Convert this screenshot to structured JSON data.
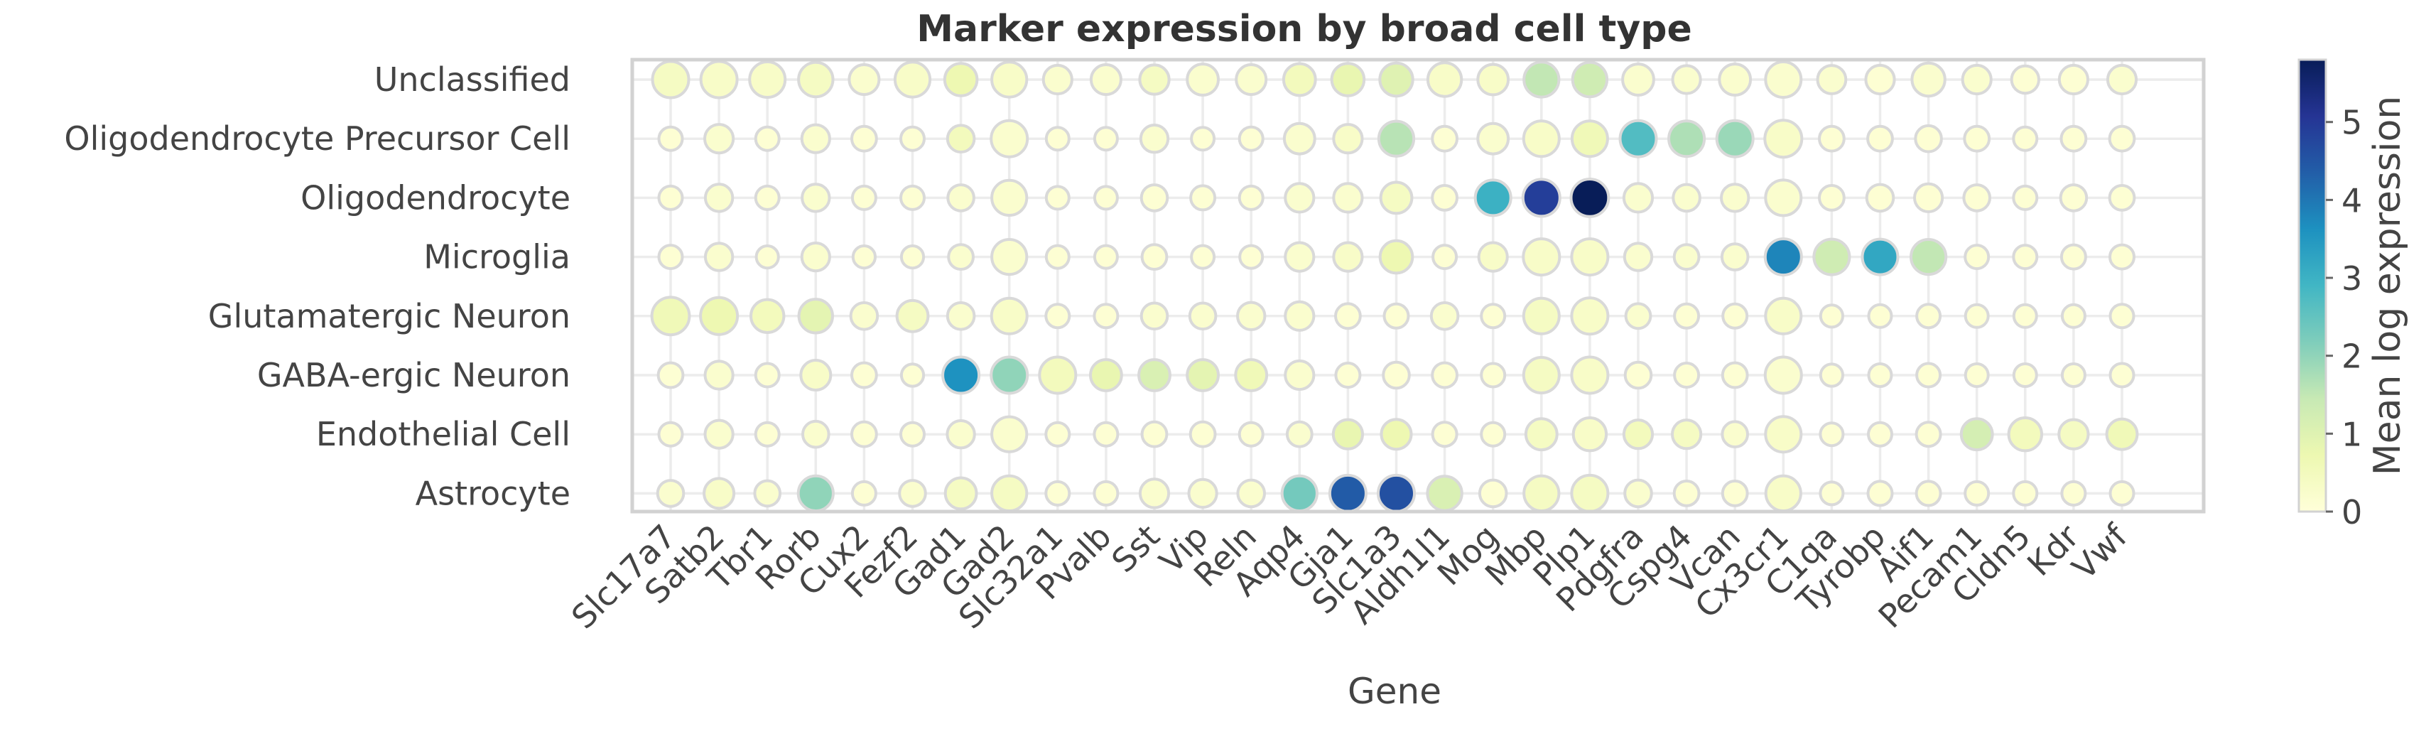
{
  "chart_data": {
    "type": "dotplot",
    "title": "Marker expression by broad cell type",
    "xlabel": "Gene",
    "ylabel": "",
    "genes": [
      "Slc17a7",
      "Satb2",
      "Tbr1",
      "Rorb",
      "Cux2",
      "Fezf2",
      "Gad1",
      "Gad2",
      "Slc32a1",
      "Pvalb",
      "Sst",
      "Vip",
      "Reln",
      "Aqp4",
      "Gja1",
      "Slc1a3",
      "Aldh1l1",
      "Mog",
      "Mbp",
      "Plp1",
      "Pdgfra",
      "Cspg4",
      "Vcan",
      "Cx3cr1",
      "C1qa",
      "Tyrobp",
      "Aif1",
      "Pecam1",
      "Cldn5",
      "Kdr",
      "Vwf"
    ],
    "cell_types": [
      "Unclassified",
      "Oligodendrocyte Precursor Cell",
      "Oligodendrocyte",
      "Microglia",
      "Glutamatergic Neuron",
      "GABA-ergic Neuron",
      "Endothelial Cell",
      "Astrocyte"
    ],
    "colorbar": {
      "label": "Mean log expression",
      "min": 0,
      "max": 5.8,
      "ticks": [
        0,
        1,
        2,
        3,
        4,
        5
      ],
      "colormap": "YlGnBu"
    },
    "rows": [
      {
        "cell_type": "Unclassified",
        "expr": [
          0.4,
          0.3,
          0.3,
          0.4,
          0.2,
          0.3,
          0.7,
          0.3,
          0.2,
          0.2,
          0.4,
          0.2,
          0.2,
          0.5,
          0.8,
          1.0,
          0.3,
          0.3,
          1.5,
          1.3,
          0.2,
          0.2,
          0.2,
          0.2,
          0.2,
          0.1,
          0.2,
          0.2,
          0.1,
          0.1,
          0.2
        ],
        "frac": [
          0.75,
          0.75,
          0.72,
          0.68,
          0.5,
          0.7,
          0.6,
          0.7,
          0.45,
          0.5,
          0.48,
          0.55,
          0.5,
          0.58,
          0.6,
          0.62,
          0.65,
          0.52,
          0.7,
          0.68,
          0.55,
          0.42,
          0.55,
          0.72,
          0.44,
          0.45,
          0.62,
          0.45,
          0.4,
          0.45,
          0.45
        ]
      },
      {
        "cell_type": "Oligodendrocyte Precursor Cell",
        "expr": [
          0.1,
          0.2,
          0.1,
          0.2,
          0.1,
          0.1,
          0.5,
          0.2,
          0.1,
          0.1,
          0.2,
          0.1,
          0.1,
          0.2,
          0.3,
          1.6,
          0.1,
          0.2,
          0.3,
          0.6,
          2.7,
          1.7,
          1.9,
          0.3,
          0.1,
          0.1,
          0.1,
          0.1,
          0.1,
          0.1,
          0.1
        ],
        "frac": [
          0.25,
          0.45,
          0.25,
          0.42,
          0.3,
          0.25,
          0.38,
          0.75,
          0.22,
          0.22,
          0.4,
          0.22,
          0.25,
          0.52,
          0.45,
          0.7,
          0.3,
          0.52,
          0.72,
          0.72,
          0.75,
          0.72,
          0.75,
          0.78,
          0.3,
          0.3,
          0.35,
          0.3,
          0.25,
          0.3,
          0.3
        ]
      },
      {
        "cell_type": "Oligodendrocyte",
        "expr": [
          0.1,
          0.2,
          0.1,
          0.2,
          0.1,
          0.1,
          0.2,
          0.2,
          0.1,
          0.1,
          0.1,
          0.1,
          0.1,
          0.2,
          0.2,
          0.4,
          0.1,
          3.0,
          4.9,
          5.8,
          0.2,
          0.2,
          0.2,
          0.2,
          0.1,
          0.1,
          0.1,
          0.1,
          0.1,
          0.1,
          0.1
        ],
        "frac": [
          0.25,
          0.4,
          0.25,
          0.4,
          0.25,
          0.25,
          0.35,
          0.7,
          0.22,
          0.22,
          0.35,
          0.28,
          0.25,
          0.45,
          0.45,
          0.55,
          0.3,
          0.72,
          0.78,
          0.8,
          0.45,
          0.38,
          0.4,
          0.72,
          0.3,
          0.38,
          0.42,
          0.35,
          0.25,
          0.35,
          0.3
        ]
      },
      {
        "cell_type": "Microglia",
        "expr": [
          0.1,
          0.2,
          0.1,
          0.2,
          0.1,
          0.1,
          0.2,
          0.2,
          0.1,
          0.1,
          0.1,
          0.1,
          0.1,
          0.2,
          0.3,
          0.7,
          0.1,
          0.3,
          0.3,
          0.3,
          0.2,
          0.2,
          0.2,
          3.8,
          1.3,
          3.2,
          1.5,
          0.1,
          0.1,
          0.1,
          0.1
        ],
        "frac": [
          0.25,
          0.4,
          0.2,
          0.42,
          0.2,
          0.2,
          0.3,
          0.7,
          0.22,
          0.22,
          0.3,
          0.22,
          0.22,
          0.45,
          0.45,
          0.6,
          0.25,
          0.45,
          0.75,
          0.75,
          0.4,
          0.3,
          0.35,
          0.75,
          0.72,
          0.72,
          0.7,
          0.25,
          0.25,
          0.28,
          0.28
        ]
      },
      {
        "cell_type": "Glutamatergic Neuron",
        "expr": [
          0.6,
          0.7,
          0.5,
          0.9,
          0.2,
          0.4,
          0.2,
          0.3,
          0.1,
          0.1,
          0.2,
          0.2,
          0.2,
          0.2,
          0.1,
          0.1,
          0.2,
          0.1,
          0.4,
          0.3,
          0.2,
          0.1,
          0.1,
          0.3,
          0.1,
          0.1,
          0.1,
          0.1,
          0.1,
          0.1,
          0.1
        ],
        "frac": [
          0.8,
          0.78,
          0.62,
          0.65,
          0.38,
          0.55,
          0.38,
          0.72,
          0.25,
          0.25,
          0.35,
          0.35,
          0.4,
          0.45,
          0.3,
          0.28,
          0.38,
          0.25,
          0.72,
          0.75,
          0.3,
          0.28,
          0.28,
          0.72,
          0.2,
          0.22,
          0.25,
          0.22,
          0.22,
          0.22,
          0.25
        ]
      },
      {
        "cell_type": "GABA-ergic Neuron",
        "expr": [
          0.1,
          0.2,
          0.1,
          0.3,
          0.1,
          0.1,
          3.6,
          2.0,
          0.5,
          0.8,
          1.1,
          0.9,
          0.6,
          0.2,
          0.1,
          0.1,
          0.1,
          0.1,
          0.4,
          0.3,
          0.1,
          0.1,
          0.1,
          0.2,
          0.1,
          0.1,
          0.1,
          0.1,
          0.1,
          0.1,
          0.1
        ],
        "frac": [
          0.3,
          0.42,
          0.25,
          0.5,
          0.3,
          0.2,
          0.75,
          0.75,
          0.75,
          0.55,
          0.55,
          0.55,
          0.55,
          0.45,
          0.28,
          0.35,
          0.3,
          0.25,
          0.72,
          0.75,
          0.35,
          0.28,
          0.3,
          0.75,
          0.2,
          0.22,
          0.25,
          0.22,
          0.22,
          0.22,
          0.25
        ]
      },
      {
        "cell_type": "Endothelial Cell",
        "expr": [
          0.1,
          0.2,
          0.1,
          0.2,
          0.1,
          0.1,
          0.2,
          0.2,
          0.1,
          0.1,
          0.1,
          0.1,
          0.1,
          0.2,
          0.8,
          0.7,
          0.1,
          0.1,
          0.4,
          0.3,
          0.5,
          0.4,
          0.2,
          0.3,
          0.1,
          0.1,
          0.1,
          1.2,
          0.5,
          0.4,
          0.6
        ],
        "frac": [
          0.25,
          0.42,
          0.25,
          0.35,
          0.3,
          0.25,
          0.4,
          0.7,
          0.25,
          0.25,
          0.3,
          0.3,
          0.25,
          0.3,
          0.48,
          0.5,
          0.28,
          0.25,
          0.55,
          0.62,
          0.45,
          0.45,
          0.32,
          0.72,
          0.22,
          0.25,
          0.28,
          0.55,
          0.62,
          0.48,
          0.52
        ]
      },
      {
        "cell_type": "Astrocyte",
        "expr": [
          0.2,
          0.3,
          0.2,
          2.0,
          0.1,
          0.2,
          0.4,
          0.4,
          0.1,
          0.1,
          0.2,
          0.2,
          0.2,
          2.3,
          4.4,
          4.6,
          1.1,
          0.1,
          0.4,
          0.4,
          0.2,
          0.1,
          0.1,
          0.3,
          0.1,
          0.1,
          0.1,
          0.1,
          0.1,
          0.1,
          0.1
        ],
        "frac": [
          0.35,
          0.5,
          0.32,
          0.7,
          0.25,
          0.35,
          0.55,
          0.7,
          0.25,
          0.25,
          0.45,
          0.42,
          0.38,
          0.7,
          0.75,
          0.75,
          0.68,
          0.38,
          0.7,
          0.75,
          0.38,
          0.3,
          0.3,
          0.7,
          0.22,
          0.28,
          0.28,
          0.25,
          0.25,
          0.25,
          0.25
        ]
      }
    ]
  }
}
